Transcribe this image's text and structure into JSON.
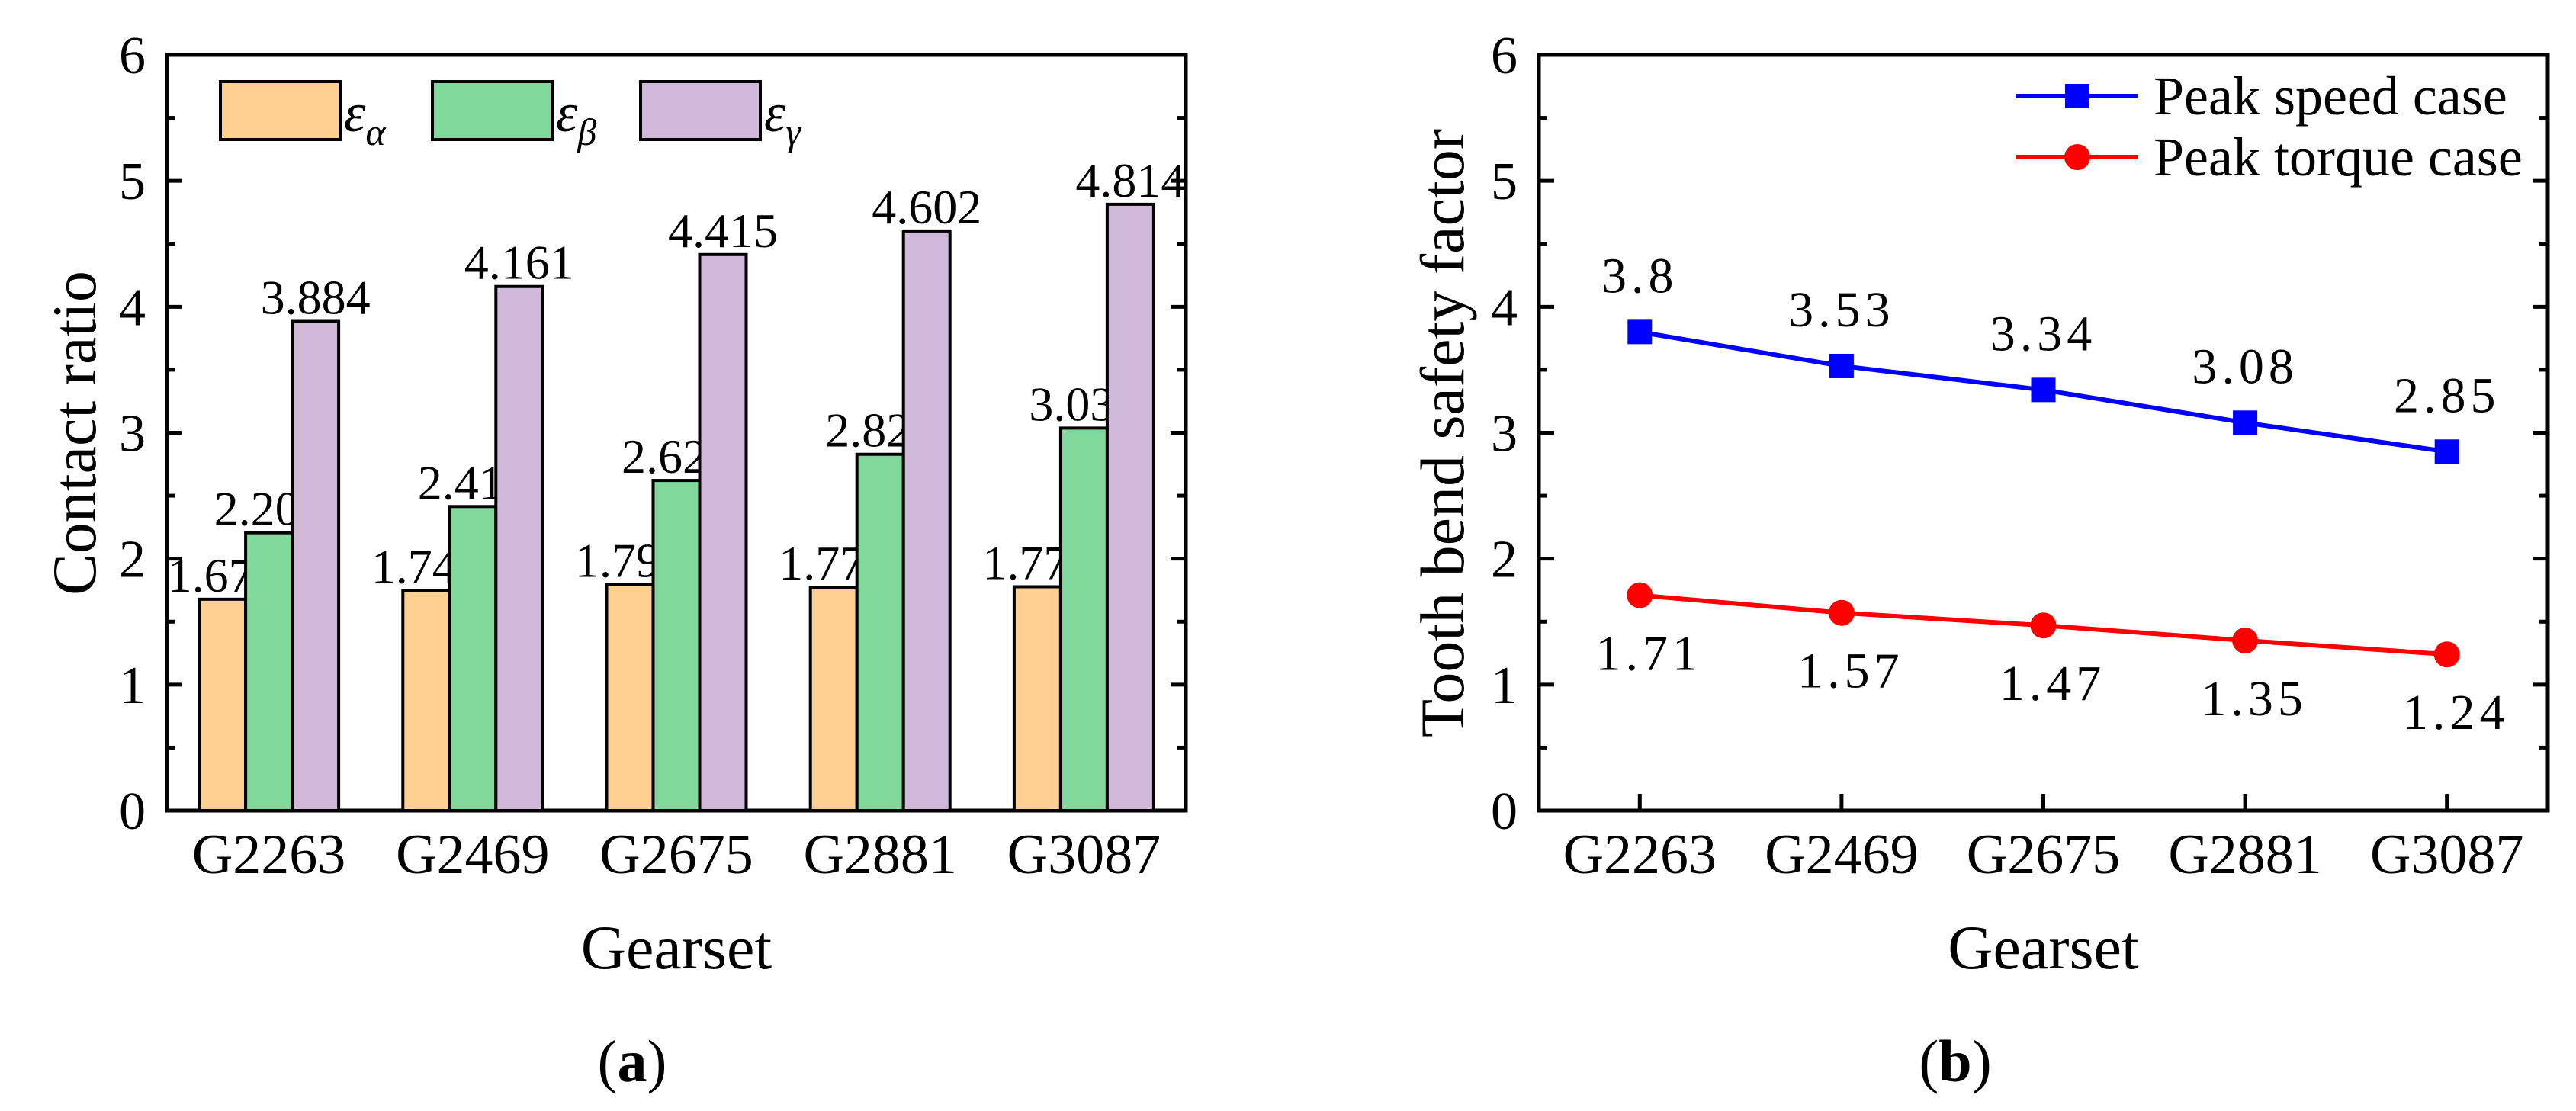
{
  "chart_data": [
    {
      "type": "bar",
      "panel_caption": "a",
      "title": "",
      "xlabel": "Gearset",
      "ylabel": "Contact ratio",
      "ylim": [
        0,
        6
      ],
      "yticks": [
        "0",
        "1",
        "2",
        "3",
        "4",
        "5",
        "6"
      ],
      "categories": [
        "G2263",
        "G2469",
        "G2675",
        "G2881",
        "G3087"
      ],
      "legend_position": "top-left",
      "series": [
        {
          "name": "εα",
          "symbol": "ε",
          "subscript": "α",
          "color": "#FFD092",
          "values": [
            1.678,
            1.747,
            1.794,
            1.773,
            1.777
          ],
          "labels": [
            "1.678",
            "1.747",
            "1.794",
            "1.773",
            "1.777"
          ]
        },
        {
          "name": "εβ",
          "symbol": "ε",
          "subscript": "β",
          "color": "#80D99A",
          "values": [
            2.206,
            2.414,
            2.621,
            2.829,
            3.037
          ],
          "labels": [
            "2.206",
            "2.414",
            "2.621",
            "2.829",
            "3.037"
          ]
        },
        {
          "name": "εγ",
          "symbol": "ε",
          "subscript": "γ",
          "color": "#D0B8DB",
          "values": [
            3.884,
            4.161,
            4.415,
            4.602,
            4.814
          ],
          "labels": [
            "3.884",
            "4.161",
            "4.415",
            "4.602",
            "4.814"
          ]
        }
      ]
    },
    {
      "type": "line",
      "panel_caption": "b",
      "title": "",
      "xlabel": "Gearset",
      "ylabel": "Tooth bend safety factor",
      "ylim": [
        0,
        6
      ],
      "yticks": [
        "0",
        "1",
        "2",
        "3",
        "4",
        "5",
        "6"
      ],
      "categories": [
        "G2263",
        "G2469",
        "G2675",
        "G2881",
        "G3087"
      ],
      "legend_position": "top-right",
      "series": [
        {
          "name": "Peak speed case",
          "marker": "square",
          "color": "#0000FF",
          "values": [
            3.8,
            3.53,
            3.34,
            3.08,
            2.85
          ],
          "labels": [
            "3.8",
            "3.53",
            "3.34",
            "3.08",
            "2.85"
          ],
          "label_side": "above"
        },
        {
          "name": "Peak torque case",
          "marker": "circle",
          "color": "#FF0000",
          "values": [
            1.71,
            1.57,
            1.47,
            1.35,
            1.24
          ],
          "labels": [
            "1.71",
            "1.57",
            "1.47",
            "1.35",
            "1.24"
          ],
          "label_side": "below"
        }
      ]
    }
  ]
}
